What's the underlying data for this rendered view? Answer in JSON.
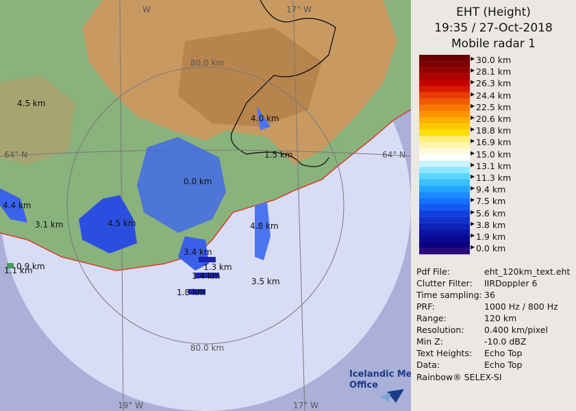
{
  "header": {
    "title": "EHT (Height)",
    "time": "19:35 / 27-Oct-2018",
    "radar": "Mobile radar 1"
  },
  "legend": [
    "30.0 km",
    "28.1 km",
    "26.3 km",
    "24.4 km",
    "22.5 km",
    "20.6 km",
    "18.8 km",
    "16.9 km",
    "15.0 km",
    "13.1 km",
    "11.3 km",
    "9.4 km",
    "7.5 km",
    "5.6 km",
    "3.8 km",
    "1.9 km",
    "0.0 km"
  ],
  "info": [
    [
      "Pdf File:",
      "eht_120km_text.eht"
    ],
    [
      "Clutter Filter:",
      "IIRDoppler 6"
    ],
    [
      "Time sampling:",
      "36"
    ],
    [
      "PRF:",
      "1000 Hz / 800 Hz"
    ],
    [
      "Range:",
      "120 km"
    ],
    [
      "Resolution:",
      "0.400 km/pixel"
    ],
    [
      "Min Z:",
      "-10.0 dBZ"
    ],
    [
      "Text Heights:",
      "Echo Top"
    ],
    [
      "Data:",
      "Echo Top"
    ]
  ],
  "footer": "Rainbow® SELEX-SI",
  "map": {
    "range_top": "80.0 km",
    "range_bottom": "80.0 km",
    "lat_left": "64° N",
    "lat_right": "64° N",
    "lon_top_left": "W",
    "lon_top_right": "17° W",
    "lon_bottom_left": "19° W",
    "lon_bottom_right": "17° W",
    "logo_line1": "Icelandic Met",
    "logo_line2": "Office",
    "echo_labels": [
      "4.5 km",
      "4.0 km",
      "1.5 km",
      "4.4 km",
      "3.1 km",
      "4.5 km",
      "4.8 km",
      "3.4 km",
      "0.9 km",
      "1.1 km",
      "1.3 km",
      "1.4 km",
      "3.5 km",
      "1.8 km",
      "0.0 km"
    ]
  }
}
